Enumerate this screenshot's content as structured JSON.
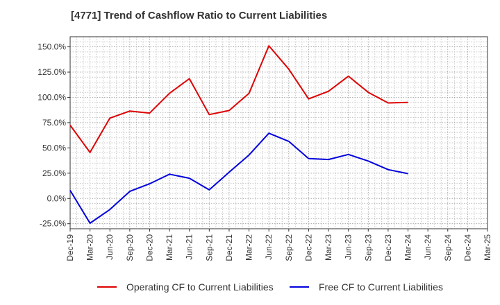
{
  "chart_data": {
    "type": "line",
    "title": "[4771]  Trend of Cashflow Ratio to Current Liabilities",
    "xlabel": "",
    "ylabel": "",
    "x": [
      "Dec-19",
      "Mar-20",
      "Jun-20",
      "Sep-20",
      "Dec-20",
      "Mar-21",
      "Jun-21",
      "Sep-21",
      "Dec-21",
      "Mar-22",
      "Jun-22",
      "Sep-22",
      "Dec-22",
      "Mar-23",
      "Jun-23",
      "Sep-23",
      "Dec-23",
      "Mar-24",
      "Jun-24",
      "Sep-24",
      "Dec-24",
      "Mar-25"
    ],
    "ylim": [
      -30,
      160
    ],
    "yticks": [
      -25,
      0,
      25,
      50,
      75,
      100,
      125,
      150
    ],
    "ytick_labels": [
      "-25.0%",
      "0.0%",
      "25.0%",
      "50.0%",
      "75.0%",
      "100.0%",
      "125.0%",
      "150.0%"
    ],
    "grid": true,
    "legend_position": "bottom",
    "series": [
      {
        "name": "Operating CF to Current Liabilities",
        "color": "#dd0000",
        "values": [
          72.5,
          45.5,
          79.5,
          86.5,
          84.5,
          104,
          118.5,
          83,
          87,
          104,
          151,
          128,
          98.5,
          106,
          121,
          105,
          94.5,
          95,
          null,
          null,
          null,
          null
        ]
      },
      {
        "name": "Free CF to Current Liabilities",
        "color": "#0000dd",
        "values": [
          8,
          -24.5,
          -11,
          7,
          14.5,
          24,
          20,
          8.5,
          26,
          43,
          64.5,
          56.5,
          39.5,
          38.5,
          43.5,
          37,
          28.5,
          24.5,
          null,
          null,
          null,
          null
        ]
      }
    ]
  }
}
